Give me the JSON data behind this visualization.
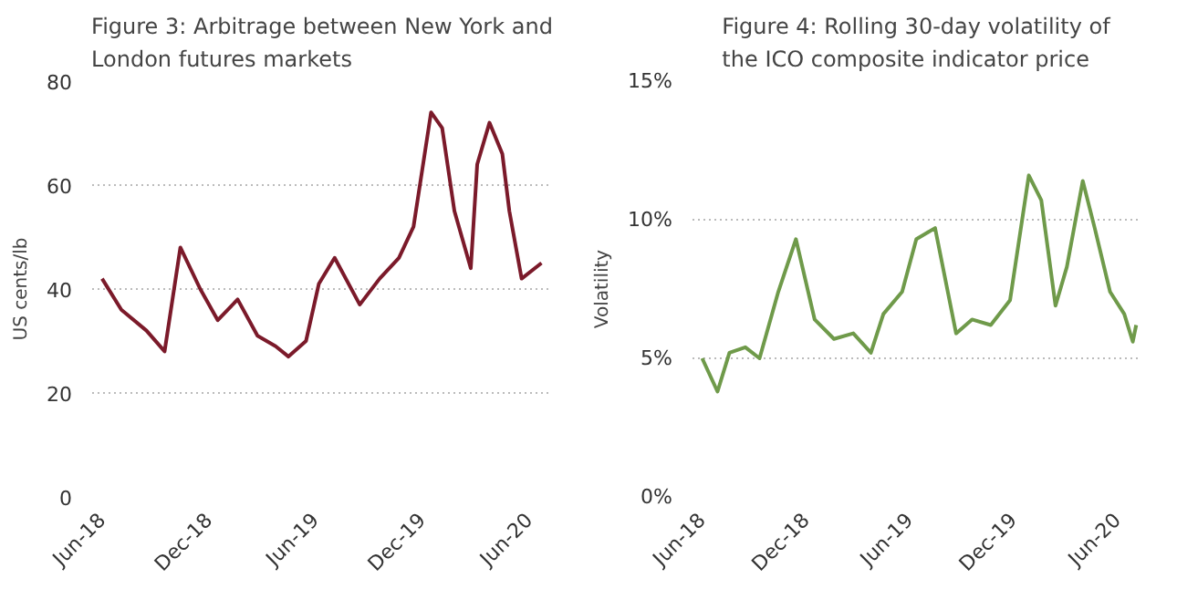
{
  "chart_data": [
    {
      "type": "line",
      "title": "Figure 3: Arbitrage between New York and London futures markets",
      "ylabel": "US cents/lb",
      "x": [
        "2018-06-01",
        "2018-07-04",
        "2018-08-16",
        "2018-09-16",
        "2018-10-13",
        "2018-11-16",
        "2018-12-16",
        "2019-01-19",
        "2019-02-22",
        "2019-03-25",
        "2019-04-16",
        "2019-05-16",
        "2019-06-07",
        "2019-07-04",
        "2019-08-16",
        "2019-09-19",
        "2019-10-22",
        "2019-11-16",
        "2019-12-16",
        "2020-01-04",
        "2020-01-25",
        "2020-02-22",
        "2020-03-04",
        "2020-03-25",
        "2020-04-16",
        "2020-04-28",
        "2020-05-19",
        "2020-06-22"
      ],
      "series": [
        {
          "color": "#7b1a2a",
          "values": [
            42,
            36,
            32,
            28,
            48,
            40,
            34,
            38,
            31,
            29,
            27,
            30,
            41,
            46,
            37,
            42,
            46,
            52,
            74,
            71,
            55,
            44,
            64,
            72,
            66,
            55,
            42,
            45
          ]
        }
      ],
      "xlim": [
        "2018-05-15",
        "2020-07-10"
      ],
      "xticks": [
        {
          "value": "2018-06-01",
          "label": "Jun-18"
        },
        {
          "value": "2018-12-01",
          "label": "Dec-18"
        },
        {
          "value": "2019-06-01",
          "label": "Jun-19"
        },
        {
          "value": "2019-12-01",
          "label": "Dec-19"
        },
        {
          "value": "2020-06-01",
          "label": "Jun-20"
        }
      ],
      "ylim": [
        0,
        80
      ],
      "yticks": [
        0,
        20,
        40,
        60,
        80
      ],
      "grid": "y",
      "line_style": "solid"
    },
    {
      "type": "line",
      "title": "Figure 4: Rolling 30-day volatility of the ICO composite indicator price",
      "ylabel": "Volatility",
      "x": [
        "2018-06-01",
        "2018-06-28",
        "2018-07-19",
        "2018-08-16",
        "2018-09-10",
        "2018-10-13",
        "2018-11-13",
        "2018-12-16",
        "2019-01-19",
        "2019-02-22",
        "2019-03-25",
        "2019-04-16",
        "2019-05-19",
        "2019-06-13",
        "2019-07-16",
        "2019-08-22",
        "2019-09-19",
        "2019-10-22",
        "2019-11-25",
        "2019-12-28",
        "2020-01-19",
        "2020-02-13",
        "2020-03-04",
        "2020-04-01",
        "2020-04-22",
        "2020-05-19",
        "2020-06-13",
        "2020-06-28",
        "2020-07-04"
      ],
      "series": [
        {
          "color": "#6f9a4a",
          "values": [
            5.0,
            3.8,
            5.2,
            5.4,
            5.0,
            7.4,
            9.3,
            6.4,
            5.7,
            5.9,
            5.2,
            6.6,
            7.4,
            9.3,
            9.7,
            5.9,
            6.4,
            6.2,
            7.1,
            11.6,
            10.7,
            6.9,
            8.3,
            11.4,
            9.7,
            7.4,
            6.6,
            5.6,
            6.2
          ]
        }
      ],
      "xlim": [
        "2018-05-15",
        "2020-07-10"
      ],
      "xticks": [
        {
          "value": "2018-06-01",
          "label": "Jun-18"
        },
        {
          "value": "2018-12-01",
          "label": "Dec-18"
        },
        {
          "value": "2019-06-01",
          "label": "Jun-19"
        },
        {
          "value": "2019-12-01",
          "label": "Dec-19"
        },
        {
          "value": "2020-06-01",
          "label": "Jun-20"
        }
      ],
      "ylim": [
        0,
        15
      ],
      "yticks": [
        {
          "value": 0,
          "label": "0%"
        },
        {
          "value": 5,
          "label": "5%"
        },
        {
          "value": 10,
          "label": "10%"
        },
        {
          "value": 15,
          "label": "15%"
        }
      ],
      "grid": "y",
      "line_style": "solid"
    }
  ]
}
